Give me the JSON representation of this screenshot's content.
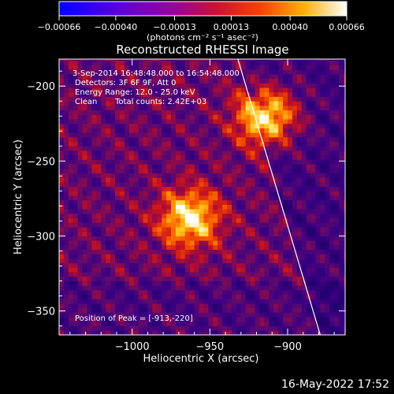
{
  "chart_data": {
    "type": "heatmap",
    "title": "Reconstructed RHESSI Image",
    "xlabel": "Heliocentric X (arcsec)",
    "ylabel": "Heliocentric Y (arcsec)",
    "xlim": [
      -1047,
      -863
    ],
    "ylim": [
      -366,
      -182
    ],
    "x_ticks": [
      -1000,
      -950,
      -900
    ],
    "x_tick_labels": [
      "−1000",
      "−950",
      "−900"
    ],
    "y_ticks": [
      -200,
      -250,
      -300,
      -350
    ],
    "y_tick_labels": [
      "−200",
      "−250",
      "−300",
      "−350"
    ],
    "colorbar": {
      "range": [
        -0.00066,
        0.00066
      ],
      "tick_values": [
        -0.00066,
        -0.0004,
        -0.00013,
        0.00013,
        0.0004,
        0.00066
      ],
      "tick_labels": [
        "−0.00066",
        "−0.00040",
        "−0.00013",
        "0.00013",
        "0.00040",
        "0.00066"
      ],
      "unit_label": "(photons cm⁻² s⁻¹ asec⁻²)",
      "colors": [
        "#0000ff",
        "#7a00d0",
        "#b00060",
        "#ff2000",
        "#ff8000",
        "#ffe000",
        "#ffffff"
      ]
    },
    "sources": [
      {
        "name": "peak",
        "x": -913,
        "y": -220,
        "intensity": 1.0
      },
      {
        "name": "secondary",
        "x": -963,
        "y": -288,
        "intensity": 0.9
      }
    ],
    "limb_line": {
      "x1": -932,
      "y1": -182,
      "x2": -879,
      "y2": -366
    },
    "annotations": {
      "time_range": "3-Sep-2014 16:48:48.000 to 16:54:48.000",
      "detectors": "Detectors: 3F 6F 9F, Att 0",
      "energy": "Energy Range: 12.0 - 25.0 keV",
      "method": "Clean",
      "total_counts": "Total counts: 2.42E+03",
      "peak_position": "Position of Peak = [-913,-220]"
    },
    "timestamp": "16-May-2022 17:52"
  }
}
